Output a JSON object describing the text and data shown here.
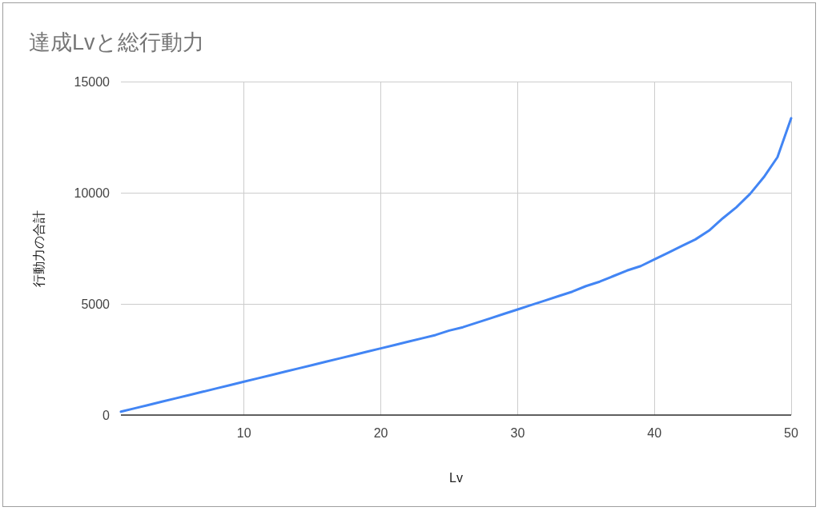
{
  "chart_data": {
    "type": "line",
    "title": "達成Lvと総行動力",
    "xlabel": "Lv",
    "ylabel": "行動力の合計",
    "x": [
      1,
      2,
      3,
      4,
      5,
      6,
      7,
      8,
      9,
      10,
      11,
      12,
      13,
      14,
      15,
      16,
      17,
      18,
      19,
      20,
      21,
      22,
      23,
      24,
      25,
      26,
      27,
      28,
      29,
      30,
      31,
      32,
      33,
      34,
      35,
      36,
      37,
      38,
      39,
      40,
      41,
      42,
      43,
      44,
      45,
      46,
      47,
      48,
      49,
      50
    ],
    "series": [
      {
        "color": "#4285f4",
        "values": [
          150,
          300,
          450,
          600,
          750,
          900,
          1050,
          1200,
          1350,
          1500,
          1650,
          1800,
          1950,
          2100,
          2250,
          2400,
          2550,
          2700,
          2850,
          3000,
          3150,
          3300,
          3450,
          3600,
          3800,
          3950,
          4150,
          4350,
          4550,
          4750,
          4950,
          5150,
          5350,
          5550,
          5800,
          6000,
          6250,
          6500,
          6700,
          7000,
          7300,
          7600,
          7900,
          8300,
          8850,
          9350,
          9950,
          10700,
          11600,
          13350
        ]
      }
    ],
    "xlim": [
      1,
      50
    ],
    "xticks": [
      10,
      20,
      30,
      40,
      50
    ],
    "ylim": [
      0,
      15000
    ],
    "yticks": [
      0,
      5000,
      10000,
      15000
    ],
    "grid": true,
    "marker": "none",
    "line_style": "solid"
  }
}
